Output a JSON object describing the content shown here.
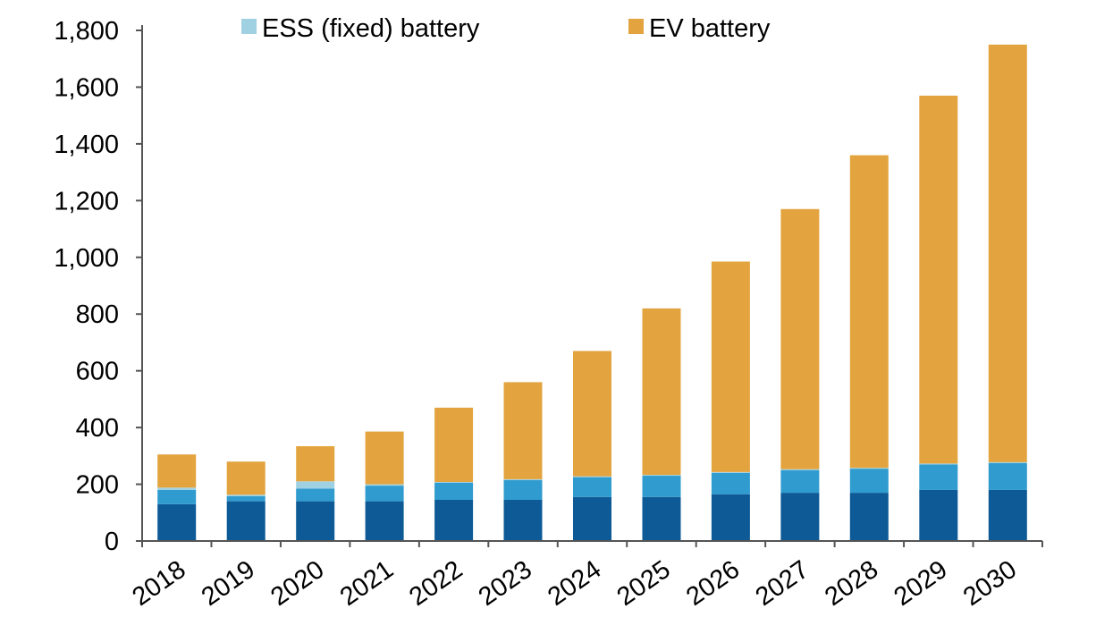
{
  "chart_data": {
    "type": "bar",
    "stacked": true,
    "categories": [
      "2018",
      "2019",
      "2020",
      "2021",
      "2022",
      "2023",
      "2024",
      "2025",
      "2026",
      "2027",
      "2028",
      "2029",
      "2030"
    ],
    "series": [
      {
        "values": [
          130,
          140,
          140,
          140,
          145,
          145,
          155,
          155,
          165,
          170,
          170,
          180,
          180
        ],
        "color": "#0d5a96"
      },
      {
        "values": [
          50,
          18,
          45,
          55,
          60,
          70,
          70,
          75,
          75,
          80,
          85,
          90,
          95
        ],
        "color": "#2f9bce"
      },
      {
        "name": "ESS (fixed) battery",
        "values": [
          8,
          5,
          25,
          5,
          3,
          3,
          3,
          3,
          3,
          3,
          3,
          3,
          3
        ],
        "color": "#9fd1e3"
      },
      {
        "name": "EV battery",
        "values": [
          117,
          117,
          124,
          186,
          262,
          342,
          442,
          587,
          742,
          917,
          1102,
          1297,
          1472
        ],
        "color": "#e3a43f"
      }
    ],
    "ylim": [
      0,
      1800
    ],
    "yticks": [
      0,
      200,
      400,
      600,
      800,
      1000,
      1200,
      1400,
      1600,
      1800
    ],
    "ytick_labels": [
      "0",
      "200",
      "400",
      "600",
      "800",
      "1,000",
      "1,200",
      "1,400",
      "1,600",
      "1,800"
    ],
    "legend": {
      "placement": "top",
      "entries": [
        "ESS (fixed) battery",
        "EV battery"
      ]
    },
    "grid": false,
    "title": "",
    "xlabel": "",
    "ylabel": ""
  }
}
